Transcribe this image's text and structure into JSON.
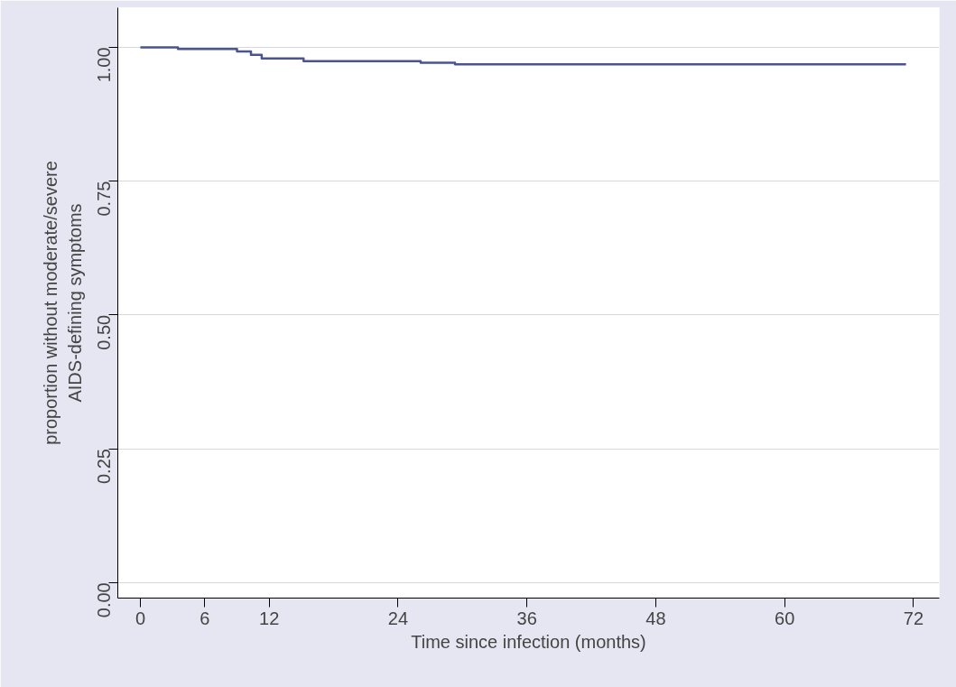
{
  "chart_data": {
    "type": "step",
    "x": [
      0,
      3.5,
      9.0,
      10.3,
      11.3,
      15.2,
      26.1,
      29.3,
      71.3
    ],
    "values": [
      1.0,
      0.997,
      0.992,
      0.986,
      0.979,
      0.974,
      0.971,
      0.968,
      0.968
    ],
    "color": "#4a5590",
    "xlabel": "Time since infection (months)",
    "ylabel": "proportion without moderate/severe\nAIDS-defining symptoms",
    "xlim": [
      -2.1,
      74.4
    ],
    "ylim": [
      -0.029,
      1.074
    ],
    "xticks": [
      0,
      6,
      12,
      24,
      36,
      48,
      60,
      72
    ],
    "yticks": [
      {
        "value": 0,
        "label": "0.00"
      },
      {
        "value": 0.25,
        "label": "0.25"
      },
      {
        "value": 0.5,
        "label": "0.50"
      },
      {
        "value": 0.75,
        "label": "0.75"
      },
      {
        "value": 1,
        "label": "1.00"
      }
    ],
    "grid": "y"
  }
}
